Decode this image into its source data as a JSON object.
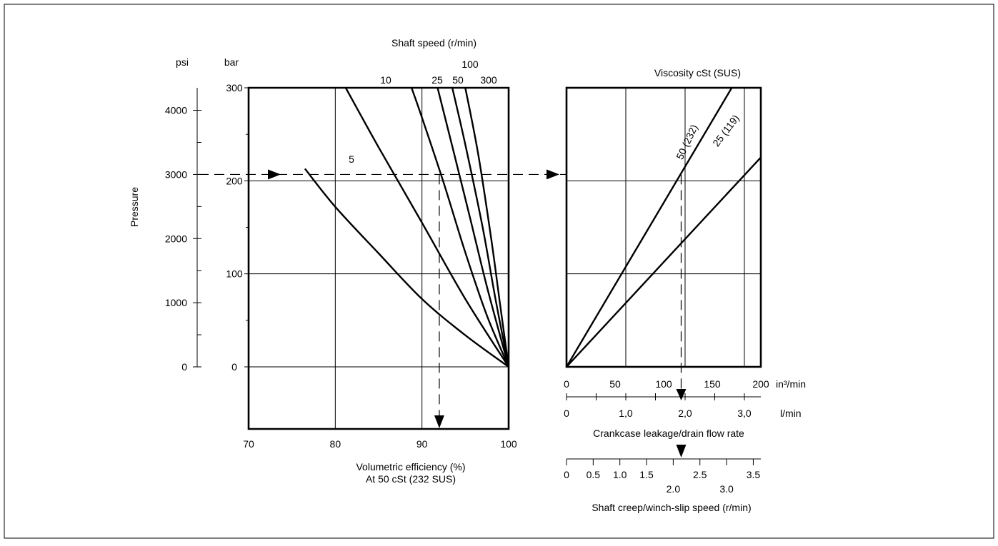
{
  "chart_data": [
    {
      "type": "line",
      "name": "volumetric-efficiency-chart",
      "title": "Shaft speed (r/min)",
      "xlabel": "Volumetric efficiency (%)",
      "xlabel2": "At 50 cSt (232 SUS)",
      "ylabel": "Pressure",
      "y_unit_psi": "psi",
      "y_unit_bar": "bar",
      "xlim": [
        70,
        100
      ],
      "ylim_bar": [
        0,
        300
      ],
      "x_ticks": [
        "70",
        "80",
        "90",
        "100"
      ],
      "x_tick_values": [
        70,
        80,
        90,
        100
      ],
      "psi_ticks": [
        "0",
        "1000",
        "2000",
        "3000",
        "4000"
      ],
      "psi_tick_values": [
        0,
        1000,
        2000,
        3000,
        4000
      ],
      "bar_ticks": [
        "0",
        "100",
        "200",
        "300"
      ],
      "bar_tick_values": [
        0,
        100,
        200,
        300
      ],
      "series": [
        {
          "name": "5",
          "points": [
            [
              76.5,
              213
            ],
            [
              80,
              172
            ],
            [
              85,
              122
            ],
            [
              90,
              73
            ],
            [
              95,
              34
            ],
            [
              100,
              0
            ]
          ]
        },
        {
          "name": "10",
          "points": [
            [
              81.2,
              300
            ],
            [
              85,
              236
            ],
            [
              90,
              155
            ],
            [
              95,
              73
            ],
            [
              100,
              0
            ]
          ]
        },
        {
          "name": "25",
          "points": [
            [
              88.8,
              300
            ],
            [
              90,
              268
            ],
            [
              92.5,
              198
            ],
            [
              95,
              123
            ],
            [
              97.5,
              55
            ],
            [
              100,
              0
            ]
          ]
        },
        {
          "name": "50",
          "points": [
            [
              91.8,
              300
            ],
            [
              93.5,
              237
            ],
            [
              95.5,
              162
            ],
            [
              97.5,
              86
            ],
            [
              100,
              0
            ]
          ]
        },
        {
          "name": "100",
          "points": [
            [
              93.5,
              300
            ],
            [
              95,
              239
            ],
            [
              97,
              150
            ],
            [
              98.5,
              72
            ],
            [
              100,
              0
            ]
          ]
        },
        {
          "name": "300",
          "points": [
            [
              95,
              300
            ],
            [
              96.5,
              228
            ],
            [
              98,
              137
            ],
            [
              99,
              68
            ],
            [
              100,
              0
            ]
          ]
        }
      ],
      "example_path": {
        "pressure_psi": 3000,
        "efficiency": 92
      }
    },
    {
      "type": "line",
      "name": "leakage-chart",
      "title": "Viscosity cSt (SUS)",
      "xlabel": "Crankcase leakage/drain flow rate",
      "xlabel2": "Shaft creep/winch-slip speed (r/min)",
      "xlim": [
        0,
        200
      ],
      "x_unit_in3": "in³/min",
      "x_unit_l": "l/min",
      "x_ticks_in3": [
        "0",
        "50",
        "100",
        "150",
        "200"
      ],
      "x_tick_values_in3": [
        0,
        50,
        100,
        150,
        200
      ],
      "x_ticks_l": [
        "0",
        "1,0",
        "2,0",
        "3,0"
      ],
      "x_tick_values_l": [
        0,
        1,
        2,
        3
      ],
      "x_ticks_creep_top": [
        "0",
        "0.5",
        "1.0",
        "1.5",
        "2.5",
        "3.5"
      ],
      "x_ticks_creep_bottom": [
        "2.0",
        "3.0"
      ],
      "x_tick_values_creep": [
        0,
        0.5,
        1,
        1.5,
        2,
        2.5,
        3,
        3.5
      ],
      "series": [
        {
          "name": "50 (232)",
          "points": [
            [
              0,
              0
            ],
            [
              172,
              4400
            ]
          ]
        },
        {
          "name": "25 (119)",
          "points": [
            [
              0,
              0
            ],
            [
              245,
              4000
            ]
          ]
        }
      ],
      "example_path": {
        "pressure_psi": 3000,
        "flow_in3": 118,
        "flow_l": 1.9,
        "creep": 1.9
      }
    }
  ]
}
